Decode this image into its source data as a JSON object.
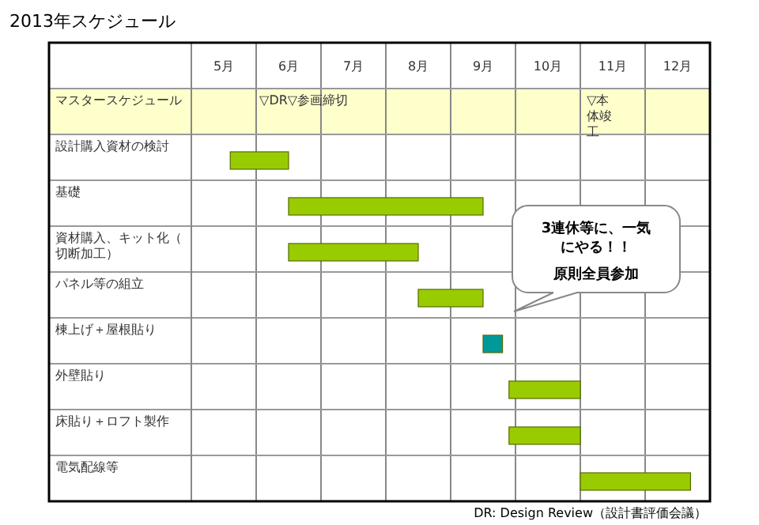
{
  "chart_data": {
    "type": "bar",
    "orientation": "horizontal",
    "title": "2013年スケジュール",
    "categories": [
      "マスタースケジュール",
      "設計購入資材の検討",
      "基礎",
      "資材購入、キット化（切断加工）",
      "パネル等の組立",
      "棟上げ＋屋根貼り",
      "外壁貼り",
      "床貼り＋ロフト製作",
      "電気配線等"
    ],
    "base": [
      null,
      5.6,
      6.5,
      6.5,
      8.5,
      9.5,
      9.9,
      9.9,
      11
    ],
    "values": [
      null,
      0.9,
      3.0,
      2.0,
      1.0,
      0.3,
      1.1,
      1.1,
      1.7
    ],
    "colors": [
      null,
      "#99cc00",
      "#99cc00",
      "#99cc00",
      "#99cc00",
      "#009999",
      "#99cc00",
      "#99cc00",
      "#99cc00"
    ],
    "xlim": [
      5,
      13
    ],
    "xticks": [
      {
        "value": 5,
        "label": null
      },
      {
        "value": 5.5,
        "label": "5月"
      },
      {
        "value": 6,
        "label": null
      },
      {
        "value": 6.5,
        "label": "6月"
      },
      {
        "value": 7,
        "label": null
      },
      {
        "value": 7.5,
        "label": "7月"
      },
      {
        "value": 8,
        "label": null
      },
      {
        "value": 8.5,
        "label": "8月"
      },
      {
        "value": 9,
        "label": null
      },
      {
        "value": 9.5,
        "label": "9月"
      },
      {
        "value": 10,
        "label": null
      },
      {
        "value": 10.5,
        "label": "10月"
      },
      {
        "value": 11,
        "label": null
      },
      {
        "value": 11.5,
        "label": "11月"
      },
      {
        "value": 12,
        "label": null
      },
      {
        "value": 12.5,
        "label": "12月"
      },
      {
        "value": 13,
        "label": null
      }
    ],
    "grid": true,
    "bands": [
      {
        "axis": "y",
        "from": "マスタースケジュール",
        "to": "マスタースケジュール",
        "color": "#ffffcc"
      }
    ],
    "annotations": [
      "▽DR▽参画締切",
      "▽本体竣工",
      "3連休等に、一気にやる！！",
      "原則全員参加",
      "DR: Design Review（設計書評価会議）"
    ]
  }
}
